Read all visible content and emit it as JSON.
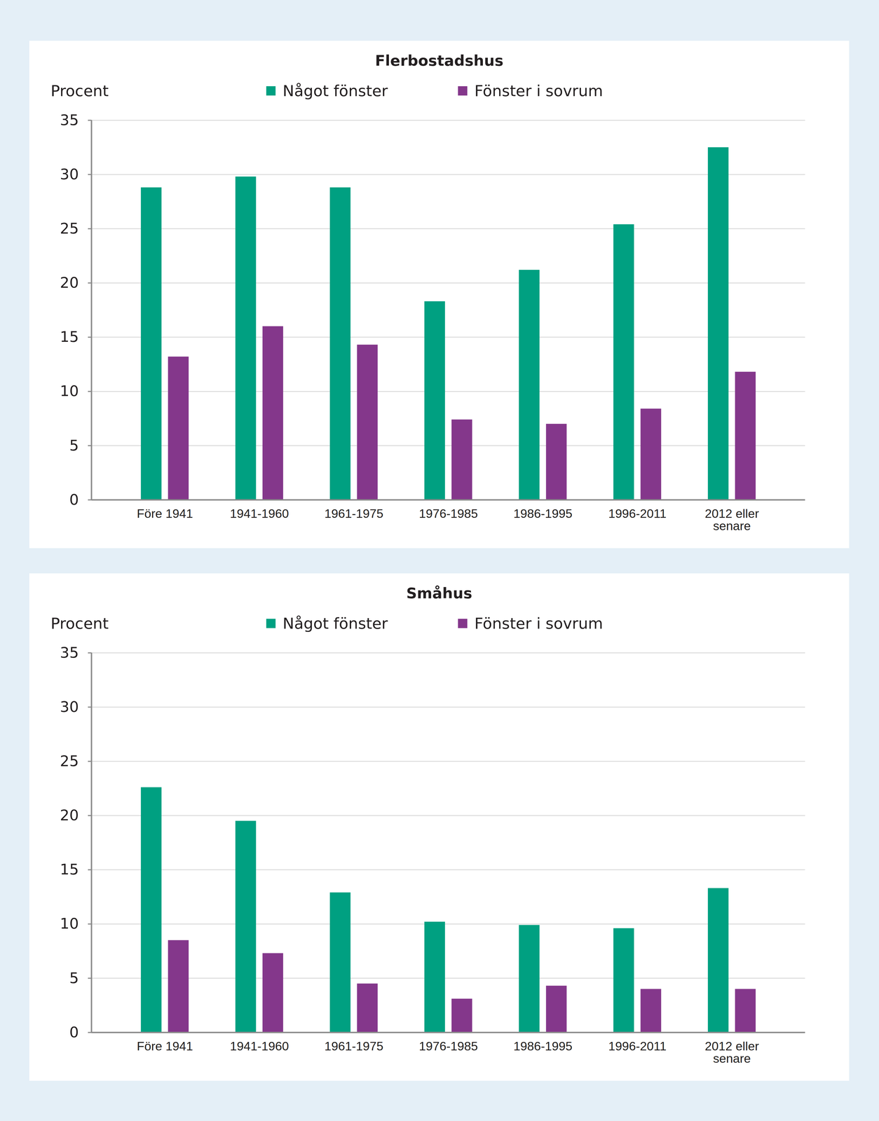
{
  "chart_data": [
    {
      "type": "bar",
      "title": "Flerbostadshus",
      "ylabel": "Procent",
      "categories": [
        "Före 1941",
        "1941-1960",
        "1961-1975",
        "1976-1985",
        "1986-1995",
        "1996-2011",
        "2012 eller senare"
      ],
      "series": [
        {
          "name": "Något fönster",
          "color": "#00a081",
          "values": [
            28.8,
            29.8,
            28.8,
            18.3,
            21.2,
            25.4,
            32.5
          ]
        },
        {
          "name": "Fönster i sovrum",
          "color": "#84378b",
          "values": [
            13.2,
            16.0,
            14.3,
            7.4,
            7.0,
            8.4,
            11.8
          ]
        }
      ],
      "ylim": [
        0,
        35
      ],
      "yticks": [
        0,
        5,
        10,
        15,
        20,
        25,
        30,
        35
      ],
      "grid": true,
      "legend": "top"
    },
    {
      "type": "bar",
      "title": "Småhus",
      "ylabel": "Procent",
      "categories": [
        "Före 1941",
        "1941-1960",
        "1961-1975",
        "1976-1985",
        "1986-1995",
        "1996-2011",
        "2012 eller senare"
      ],
      "series": [
        {
          "name": "Något fönster",
          "color": "#00a081",
          "values": [
            22.6,
            19.5,
            12.9,
            10.2,
            9.9,
            9.6,
            13.3
          ]
        },
        {
          "name": "Fönster i sovrum",
          "color": "#84378b",
          "values": [
            8.5,
            7.3,
            4.5,
            3.1,
            4.3,
            4.0,
            4.0
          ]
        }
      ],
      "ylim": [
        0,
        35
      ],
      "yticks": [
        0,
        5,
        10,
        15,
        20,
        25,
        30,
        35
      ],
      "grid": true,
      "legend": "top"
    }
  ]
}
